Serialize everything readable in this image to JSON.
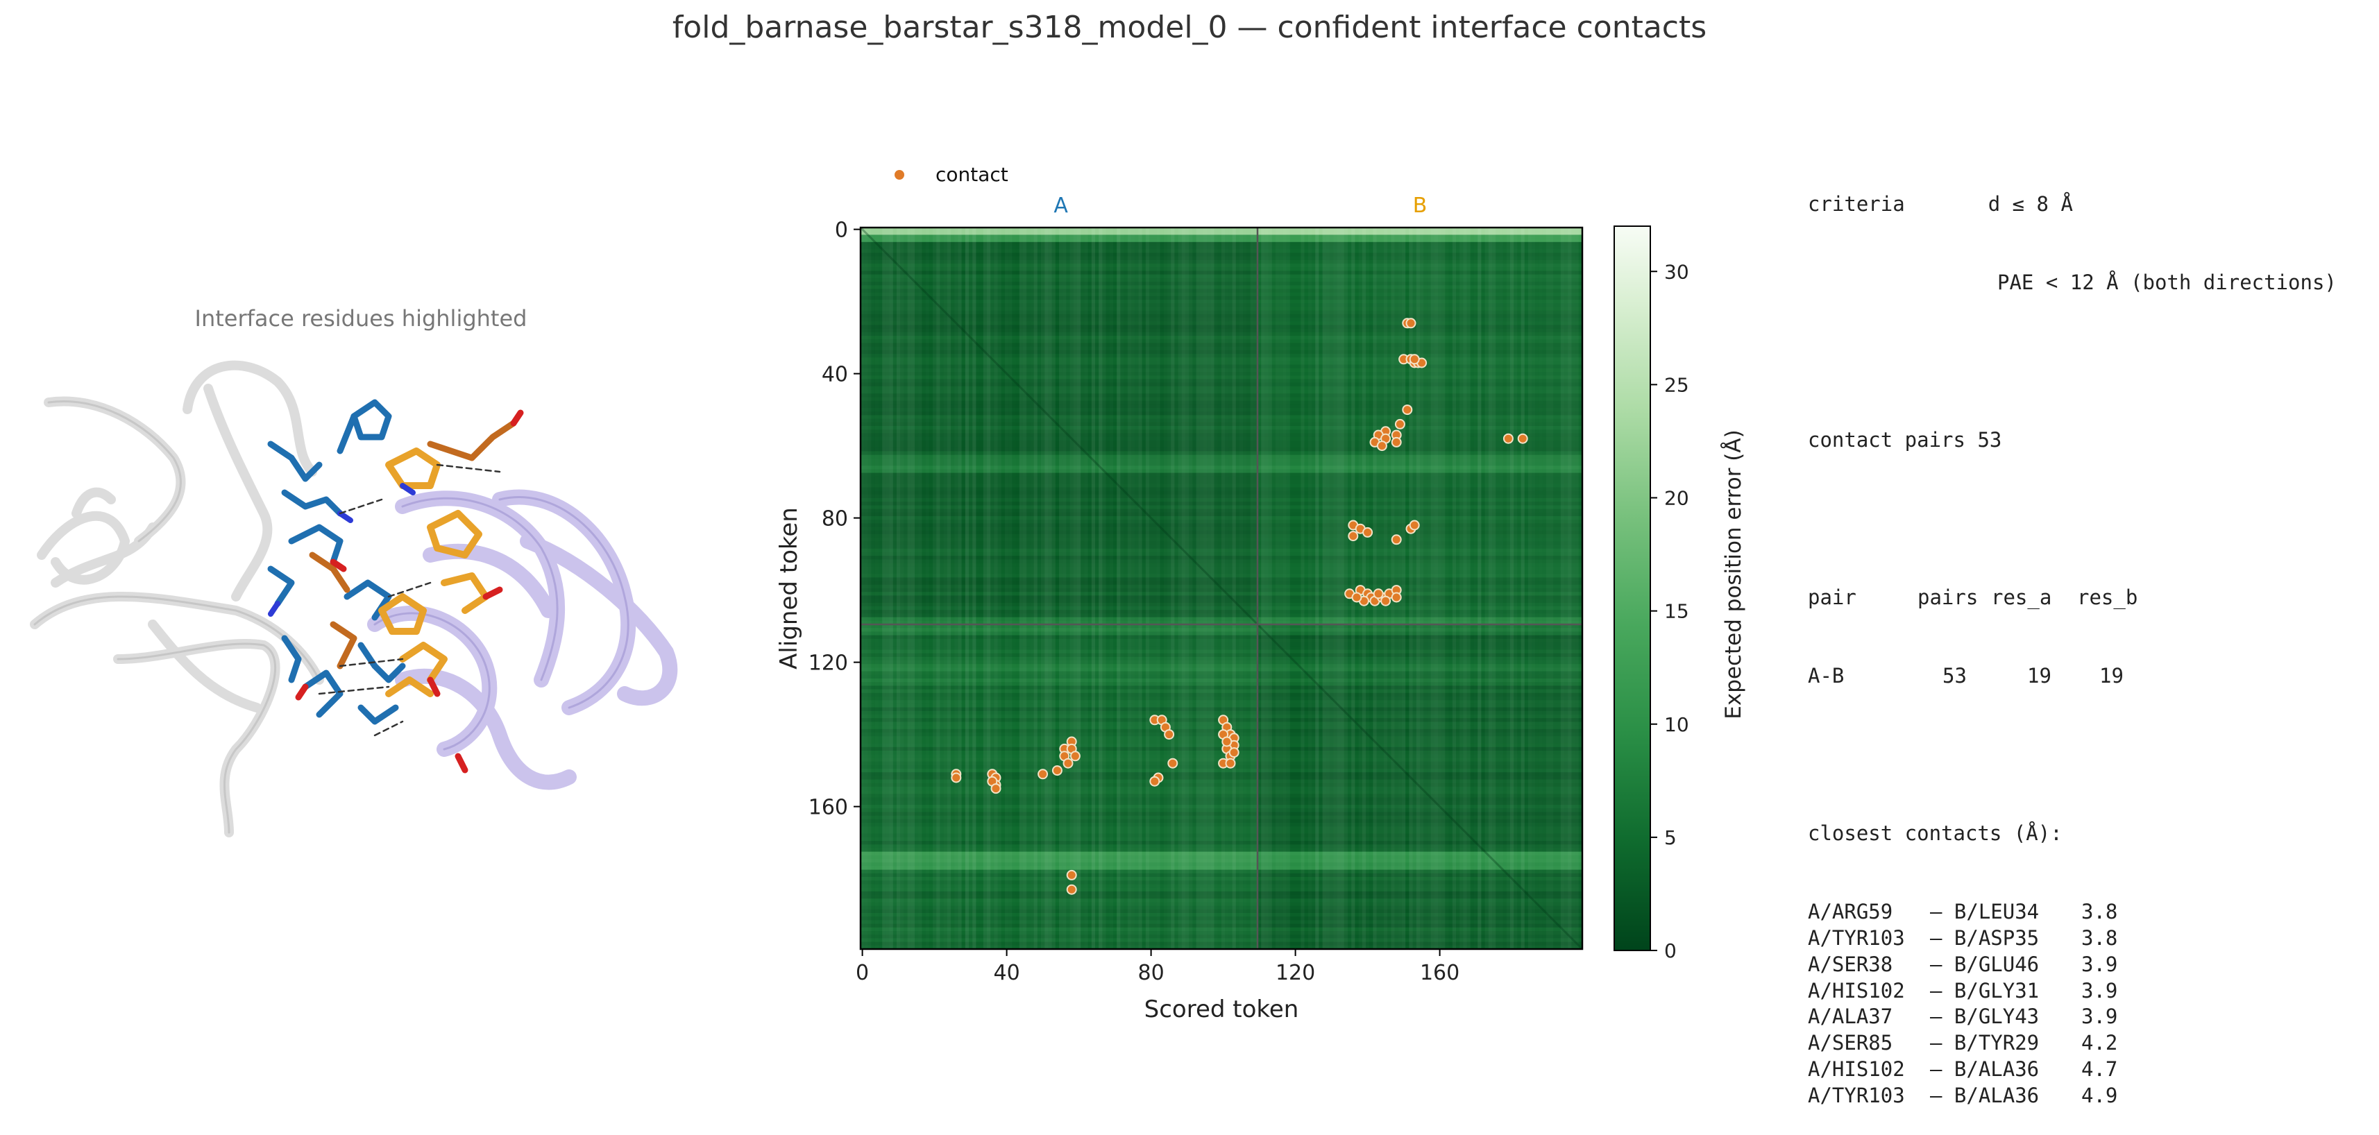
{
  "title": "fold_barnase_barstar_s318_model_0 — confident interface contacts",
  "structure_panel": {
    "caption": "Interface residues highlighted",
    "colors": {
      "chain_a_cartoon": "#e3e3e3",
      "chain_b_cartoon": "#c9c2ea",
      "chain_a_sticks": "#1f6fb0",
      "chain_b_sticks": "#e8a22a",
      "contact_sticks": "#c26a1f"
    }
  },
  "chart_data": {
    "type": "heatmap",
    "title": "",
    "xlabel": "Scored token",
    "ylabel": "Aligned token",
    "xlim": [
      0,
      199
    ],
    "ylim": [
      199,
      0
    ],
    "xticks": [
      0,
      40,
      80,
      120,
      160
    ],
    "yticks": [
      0,
      40,
      80,
      120,
      160
    ],
    "chain_boundary": 110,
    "chain_labels": [
      {
        "label": "A",
        "center": 55,
        "color": "#1f77b4"
      },
      {
        "label": "B",
        "center": 154.5,
        "color": "#e69f00"
      }
    ],
    "colorbar": {
      "label": "Expected position error (Å)",
      "min": 0,
      "max": 32,
      "ticks": [
        0,
        5,
        10,
        15,
        20,
        25,
        30
      ],
      "colormap": "Greens_r"
    },
    "legend": {
      "label": "contact",
      "color": "#e07b28",
      "position": "top-left (outside)"
    },
    "heatmap_description_levels": {
      "typical_intra": 3,
      "typical_inter": 5,
      "edge_rows_bright": 24
    },
    "contacts": [
      [
        151,
        26
      ],
      [
        152,
        26
      ],
      [
        150,
        36
      ],
      [
        152,
        36
      ],
      [
        153,
        37
      ],
      [
        154,
        37
      ],
      [
        155,
        37
      ],
      [
        153,
        36
      ],
      [
        151,
        50
      ],
      [
        149,
        54
      ],
      [
        145,
        56
      ],
      [
        148,
        57
      ],
      [
        148,
        59
      ],
      [
        143,
        57
      ],
      [
        145,
        58
      ],
      [
        142,
        59
      ],
      [
        144,
        60
      ],
      [
        179,
        58
      ],
      [
        183,
        58
      ],
      [
        136,
        82
      ],
      [
        138,
        83
      ],
      [
        140,
        84
      ],
      [
        136,
        85
      ],
      [
        152,
        83
      ],
      [
        153,
        82
      ],
      [
        148,
        86
      ],
      [
        135,
        101
      ],
      [
        138,
        100
      ],
      [
        140,
        101
      ],
      [
        141,
        102
      ],
      [
        139,
        103
      ],
      [
        142,
        103
      ],
      [
        144,
        102
      ],
      [
        146,
        101
      ],
      [
        148,
        100
      ],
      [
        148,
        102
      ],
      [
        145,
        103
      ],
      [
        143,
        101
      ],
      [
        137,
        102
      ],
      [
        26,
        151
      ],
      [
        26,
        152
      ],
      [
        36,
        151
      ],
      [
        37,
        152
      ],
      [
        37,
        154
      ],
      [
        36,
        153
      ],
      [
        37,
        155
      ],
      [
        50,
        151
      ],
      [
        54,
        150
      ],
      [
        56,
        144
      ],
      [
        58,
        142
      ],
      [
        58,
        144
      ],
      [
        56,
        146
      ],
      [
        59,
        146
      ],
      [
        57,
        148
      ],
      [
        58,
        179
      ],
      [
        58,
        183
      ],
      [
        81,
        136
      ],
      [
        83,
        136
      ],
      [
        84,
        138
      ],
      [
        85,
        140
      ],
      [
        82,
        152
      ],
      [
        81,
        153
      ],
      [
        86,
        148
      ],
      [
        100,
        136
      ],
      [
        101,
        138
      ],
      [
        102,
        140
      ],
      [
        103,
        141
      ],
      [
        100,
        140
      ],
      [
        103,
        143
      ],
      [
        101,
        144
      ],
      [
        102,
        146
      ],
      [
        100,
        148
      ],
      [
        102,
        148
      ],
      [
        103,
        145
      ],
      [
        101,
        142
      ]
    ]
  },
  "info": {
    "criteria_label": "criteria",
    "criteria_line1": "d ≤ 8 Å",
    "criteria_line2": "PAE < 12 Å (both directions)",
    "contact_pairs_label": "contact pairs",
    "contact_pairs_value": "53",
    "pair_header": [
      "pair",
      "pairs",
      "res_a",
      "res_b"
    ],
    "pair_rows": [
      [
        "A-B",
        "53",
        "19",
        "19"
      ]
    ],
    "closest_label": "closest contacts (Å):",
    "closest": [
      {
        "a": "A/ARG59",
        "b": "– B/LEU34",
        "d": "3.8"
      },
      {
        "a": "A/TYR103",
        "b": "– B/ASP35",
        "d": "3.8"
      },
      {
        "a": "A/SER38",
        "b": "– B/GLU46",
        "d": "3.9"
      },
      {
        "a": "A/HIS102",
        "b": "– B/GLY31",
        "d": "3.9"
      },
      {
        "a": "A/ALA37",
        "b": "– B/GLY43",
        "d": "3.9"
      },
      {
        "a": "A/SER85",
        "b": "– B/TYR29",
        "d": "4.2"
      },
      {
        "a": "A/HIS102",
        "b": "– B/ALA36",
        "d": "4.7"
      },
      {
        "a": "A/TYR103",
        "b": "– B/ALA36",
        "d": "4.9"
      }
    ]
  }
}
